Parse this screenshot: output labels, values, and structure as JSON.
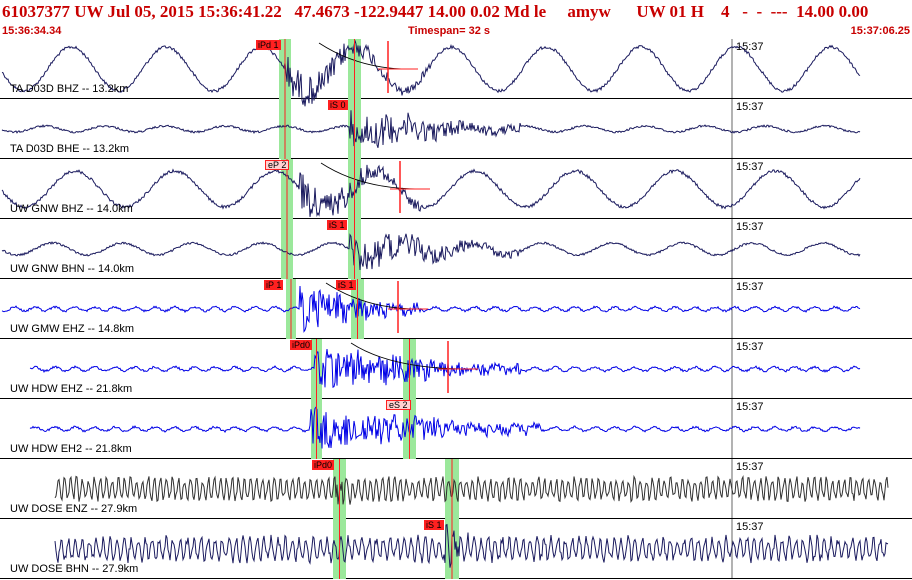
{
  "header": {
    "title": "61037377 UW Jul 05, 2015 15:36:41.22   47.4673 -122.9447 14.00 0.02 Md le     amyw      UW 01 H    4   -  -  ---  14.00 0.00",
    "start_time": "15:36:34.34",
    "timespan": "Timespan=  32 s",
    "end_time": "15:37:06.25"
  },
  "colors": {
    "header_text": "#c80000",
    "trace_dark": "#1a1a5e",
    "trace_blue": "#0000e6",
    "trace_gray": "#303030",
    "pick_window": "#9be89b",
    "pick_marker": "#ff2020"
  },
  "channels": [
    {
      "label": "TA D03D BHZ -- 13.2km",
      "time_label": "15:37",
      "style": "dark",
      "picks": [
        {
          "text": "iPd 1",
          "kind": "solid"
        }
      ]
    },
    {
      "label": "TA D03D BHE -- 13.2km",
      "time_label": "15:37",
      "style": "dark",
      "picks": [
        {
          "text": "iS 0",
          "kind": "solid"
        }
      ]
    },
    {
      "label": "UW GNW BHZ -- 14.0km",
      "time_label": "15:37",
      "style": "dark",
      "picks": [
        {
          "text": "eP 2",
          "kind": "outline"
        }
      ]
    },
    {
      "label": "UW GNW BHN -- 14.0km",
      "time_label": "15:37",
      "style": "dark",
      "picks": [
        {
          "text": "iS 1",
          "kind": "solid"
        }
      ]
    },
    {
      "label": "UW GMW EHZ -- 14.8km",
      "time_label": "15:37",
      "style": "blue",
      "picks": [
        {
          "text": "iP 1",
          "kind": "solid"
        },
        {
          "text": "iS 1",
          "kind": "solid"
        }
      ]
    },
    {
      "label": "UW HDW EHZ -- 21.8km",
      "time_label": "15:37",
      "style": "blue",
      "picks": [
        {
          "text": "iPd0",
          "kind": "solid"
        }
      ]
    },
    {
      "label": "UW HDW EH2 -- 21.8km",
      "time_label": "15:37",
      "style": "blue",
      "picks": [
        {
          "text": "eS 2",
          "kind": "outline"
        }
      ]
    },
    {
      "label": "UW DOSE ENZ -- 27.9km",
      "time_label": "15:37",
      "style": "gray",
      "picks": [
        {
          "text": "iPd0",
          "kind": "solid"
        }
      ]
    },
    {
      "label": "UW DOSE BHN -- 27.9km",
      "time_label": "15:37",
      "style": "dark",
      "picks": [
        {
          "text": "iS 1",
          "kind": "solid"
        }
      ]
    }
  ]
}
